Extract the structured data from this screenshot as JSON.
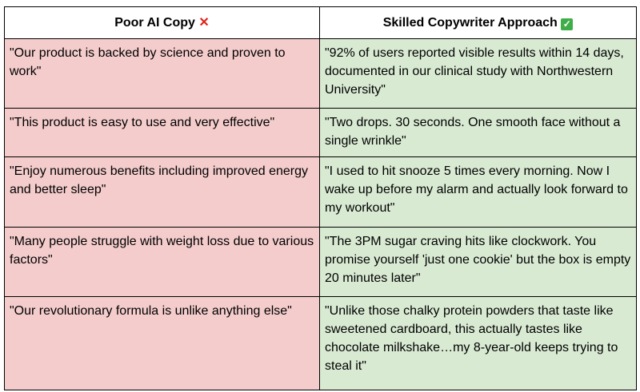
{
  "headers": {
    "poor": "Poor AI Copy",
    "poor_icon": "cross-mark-icon",
    "good": "Skilled Copywriter Approach",
    "good_icon": "check-mark-icon"
  },
  "colors": {
    "poor_bg": "#f4cccc",
    "good_bg": "#d9ead3",
    "cross": "#e0231b",
    "check": "#3fae49"
  },
  "rows": [
    {
      "poor": "\"Our product is backed by science and proven to work\"",
      "good": "\"92% of users reported visible results within 14 days, documented in our clinical study with Northwestern University\""
    },
    {
      "poor": "\"This product is easy to use and very effective\"",
      "good": "\"Two drops. 30 seconds. One smooth face without a single wrinkle\""
    },
    {
      "poor": "\"Enjoy numerous benefits including improved energy and better sleep\"",
      "good": "\"I used to hit snooze 5 times every morning. Now I wake up before my alarm and actually look forward to my workout\""
    },
    {
      "poor": "\"Many people struggle with weight loss due to various factors\"",
      "good": "\"The 3PM sugar craving hits like clockwork. You promise yourself 'just one cookie' but the box is empty 20 minutes later\""
    },
    {
      "poor": "\"Our revolutionary formula is unlike anything else\"",
      "good": "\"Unlike those chalky protein powders that taste like sweetened cardboard, this actually tastes like chocolate milkshake…my 8-year-old keeps trying to steal it\""
    }
  ]
}
